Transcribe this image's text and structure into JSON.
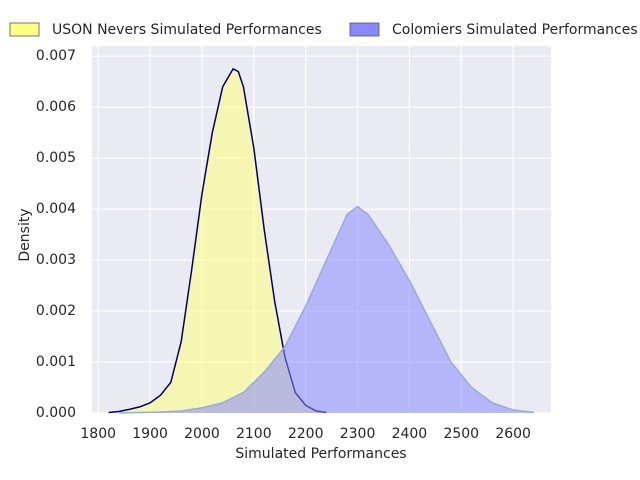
{
  "chart_data": {
    "type": "area",
    "xlabel": "Simulated Performances",
    "ylabel": "Density",
    "xlim": [
      1788,
      2673
    ],
    "ylim": [
      0,
      0.0072
    ],
    "xticks": [
      1800,
      1900,
      2000,
      2100,
      2200,
      2300,
      2400,
      2500,
      2600
    ],
    "yticks": [
      {
        "value": 0,
        "label": "0.000"
      },
      {
        "value": 0.001,
        "label": "0.001"
      },
      {
        "value": 0.002,
        "label": "0.002"
      },
      {
        "value": 0.003,
        "label": "0.003"
      },
      {
        "value": 0.004,
        "label": "0.004"
      },
      {
        "value": 0.005,
        "label": "0.005"
      },
      {
        "value": 0.006,
        "label": "0.006"
      },
      {
        "value": 0.007,
        "label": "0.007"
      }
    ],
    "grid": true,
    "legend": "top",
    "series": [
      {
        "name": "USON Nevers Simulated Performances",
        "color": "#ffff80",
        "edgecolor": "#000066",
        "x": [
          1820,
          1840,
          1860,
          1880,
          1900,
          1920,
          1940,
          1960,
          1980,
          2000,
          2020,
          2040,
          2060,
          2070,
          2080,
          2100,
          2120,
          2140,
          2160,
          2180,
          2200,
          2220,
          2240
        ],
        "values": [
          1e-05,
          3e-05,
          7e-05,
          0.00012,
          0.0002,
          0.00035,
          0.0006,
          0.0014,
          0.0028,
          0.0043,
          0.0055,
          0.0064,
          0.00675,
          0.0067,
          0.0064,
          0.0052,
          0.0036,
          0.0022,
          0.0011,
          0.0004,
          0.00015,
          4e-05,
          1e-05
        ]
      },
      {
        "name": "Colomiers Simulated Performances",
        "color": "#8888ff",
        "edgecolor": "#99aadd",
        "x": [
          1840,
          1880,
          1920,
          1960,
          2000,
          2040,
          2080,
          2120,
          2160,
          2200,
          2240,
          2280,
          2300,
          2320,
          2360,
          2400,
          2440,
          2480,
          2520,
          2560,
          2600,
          2640
        ],
        "values": [
          0,
          1e-05,
          2e-05,
          4e-05,
          0.0001,
          0.0002,
          0.0004,
          0.0008,
          0.0013,
          0.0021,
          0.003,
          0.0039,
          0.00405,
          0.0039,
          0.0033,
          0.0026,
          0.0018,
          0.001,
          0.0005,
          0.0002,
          6e-05,
          1e-05
        ]
      }
    ]
  }
}
